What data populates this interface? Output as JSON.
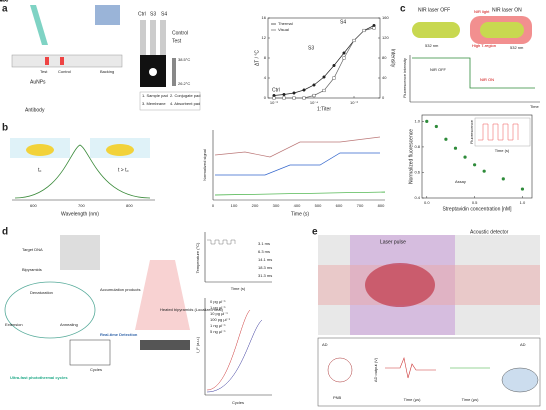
{
  "panels": {
    "a": {
      "label": "a",
      "strips": [
        "Ctrl",
        "S3",
        "S4"
      ],
      "texts": [
        "Control",
        "Test",
        "38.5°C",
        "26.2°C",
        "Test",
        "Control",
        "Backing",
        "AuNPs",
        "Antibody",
        "1. Sample pad",
        "2. Conjugate pad",
        "3. Membrane",
        "4. Absorbent pad"
      ]
    },
    "b": {
      "label": "b",
      "texts": [
        "t₀",
        "t > t₀",
        "Wavelength (nm)",
        "600",
        "700",
        "800",
        "Normalized signal",
        "Time (s)",
        "0",
        "100",
        "200",
        "300",
        "400",
        "500",
        "600",
        "700",
        "800"
      ]
    },
    "c": {
      "label": "c",
      "texts": [
        "NIR laser OFF",
        "NIR laser ON",
        "532 nm",
        "532 nm",
        "NIR light",
        "High T-region",
        "Fluorescence intensity",
        "NIR OFF",
        "NIR ON",
        "Time",
        "Fluorescence",
        "Time (s)",
        "Assay"
      ]
    },
    "d": {
      "label": "d",
      "texts": [
        "Target DNA",
        "Bipyramids",
        "Denaturation",
        "Extension",
        "Annealing",
        "Accumulation products",
        "Real-time Detection",
        "Heated bipyramids (Localized heat)",
        "Ultra-fast photothermal cycles",
        "Cycles",
        "Temperature (°C)",
        "Time (s)",
        "3.1 ms",
        "6.3 ms",
        "14.1 ms",
        "18.3 ms",
        "31.3 ms",
        "I_F (a.u.)",
        "Cycles",
        "0 pg μl⁻¹",
        "1 pg μl⁻¹",
        "10 pg μl⁻¹",
        "100 pg μl⁻¹",
        "1 ng μl⁻¹",
        "5 ng μl⁻¹"
      ]
    },
    "e": {
      "label": "e",
      "texts": [
        "Laser pulse",
        "Acoustic detector",
        "AD",
        "PNB",
        "AD output (V)",
        "Time (μs)",
        "Time (μs)",
        "AD"
      ]
    }
  },
  "chart_data": [
    {
      "type": "line",
      "x_label": "1:Titer",
      "y_label": "ΔT / °C",
      "y2_label": "Intensity",
      "x": [
        -6,
        -5.5,
        -5,
        -4.5,
        -4,
        -3.5,
        -3,
        -2.5,
        -2,
        -1.5,
        -1
      ],
      "xlim": [
        -6.3,
        -0.7
      ],
      "xticks": [
        {
          "value": -6,
          "label": "10⁻⁶"
        },
        {
          "value": -4,
          "label": "10⁻⁴"
        },
        {
          "value": -2,
          "label": "10⁻²"
        }
      ],
      "ylim": [
        0,
        16
      ],
      "yticks": [
        0,
        4,
        8,
        12,
        16
      ],
      "y2lim": [
        0,
        160
      ],
      "y2ticks": [
        0,
        40,
        80,
        120,
        160
      ],
      "series": [
        {
          "name": "Thermal",
          "color": "#222222",
          "values": [
            0.5,
            0.7,
            1,
            1.6,
            2.6,
            4.2,
            6.5,
            9,
            11.5,
            13.5,
            14.5
          ]
        },
        {
          "name": "Visual",
          "color": "#666666",
          "axis": "y2",
          "values": [
            0,
            0,
            0,
            0,
            5,
            15,
            40,
            80,
            115,
            135,
            140
          ]
        }
      ],
      "annotations": [
        "Ctrl",
        "S3",
        "S4"
      ]
    },
    {
      "type": "scatter",
      "x_label": "Streptavidin concentration [nM]",
      "y_label": "Normalized fluorescence",
      "x": [
        0,
        0.1,
        0.2,
        0.3,
        0.4,
        0.5,
        0.6,
        0.8,
        1.0
      ],
      "values": [
        1.0,
        0.96,
        0.86,
        0.79,
        0.72,
        0.66,
        0.61,
        0.55,
        0.47
      ],
      "color": "#2e8b3a",
      "xlim": [
        -0.05,
        1.1
      ],
      "xticks": [
        {
          "value": 0,
          "label": "0.0"
        },
        0.5,
        {
          "value": 1,
          "label": "1.0"
        }
      ],
      "ylim": [
        0.4,
        1.05
      ],
      "yticks": [
        0.4,
        0.6,
        0.8,
        {
          "value": 1,
          "label": "1.0"
        }
      ]
    }
  ]
}
